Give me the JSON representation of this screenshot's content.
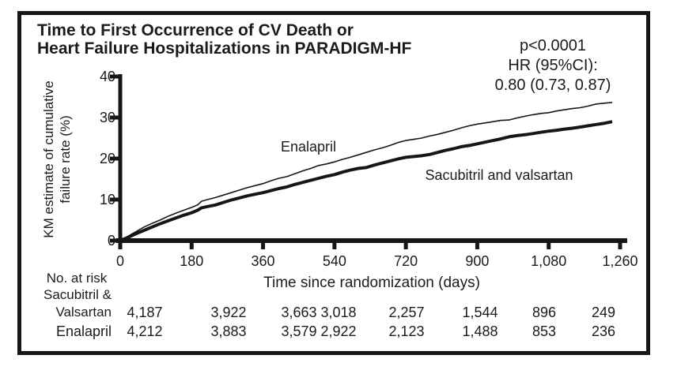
{
  "figure": {
    "title_line1": "Time to First Occurrence of CV Death or",
    "title_line2": "Heart Failure Hospitalizations in PARADIGM-HF",
    "stats": {
      "p_value": "p<0.0001",
      "hr_label": "HR (95%CI):",
      "hr_value": "0.80 (0.73, 0.87)"
    }
  },
  "chart_data": {
    "type": "line",
    "title": "Time to First Occurrence of CV Death or Heart Failure Hospitalizations in PARADIGM-HF",
    "xlabel": "Time since randomization (days)",
    "ylabel": "KM estimate of cumulative failure rate (%)",
    "ylabel_line1": "KM estimate of cumulative",
    "ylabel_line2": "failure rate (%)",
    "xlim": [
      0,
      1260
    ],
    "ylim": [
      0,
      40
    ],
    "x_ticks": [
      0,
      180,
      360,
      540,
      720,
      900,
      1080,
      1260
    ],
    "x_tick_labels": [
      "0",
      "180",
      "360",
      "540",
      "720",
      "900",
      "1,080",
      "1,260"
    ],
    "y_ticks": [
      0,
      10,
      20,
      30,
      40
    ],
    "y_tick_labels": [
      "0",
      "10",
      "20",
      "30",
      "40"
    ],
    "grid": false,
    "legend_position": "inline-annotations",
    "annotations": [
      "p<0.0001",
      "HR (95%CI):",
      "0.80 (0.73, 0.87)"
    ],
    "series": [
      {
        "name": "Enalapril",
        "style": "thin",
        "color": "#161616",
        "points": [
          [
            0,
            0
          ],
          [
            20,
            1.1
          ],
          [
            40,
            2.2
          ],
          [
            60,
            3.3
          ],
          [
            80,
            4.2
          ],
          [
            100,
            5.0
          ],
          [
            120,
            5.9
          ],
          [
            140,
            6.7
          ],
          [
            160,
            7.4
          ],
          [
            180,
            8.1
          ],
          [
            195,
            8.7
          ],
          [
            205,
            9.6
          ],
          [
            220,
            10.0
          ],
          [
            240,
            10.5
          ],
          [
            260,
            11.1
          ],
          [
            280,
            11.7
          ],
          [
            300,
            12.3
          ],
          [
            320,
            12.9
          ],
          [
            340,
            13.4
          ],
          [
            360,
            13.9
          ],
          [
            380,
            14.6
          ],
          [
            400,
            15.2
          ],
          [
            420,
            15.6
          ],
          [
            440,
            16.3
          ],
          [
            460,
            17.0
          ],
          [
            480,
            17.6
          ],
          [
            500,
            18.3
          ],
          [
            520,
            18.7
          ],
          [
            540,
            19.2
          ],
          [
            560,
            19.8
          ],
          [
            580,
            20.3
          ],
          [
            600,
            20.9
          ],
          [
            620,
            21.5
          ],
          [
            640,
            22.1
          ],
          [
            660,
            22.6
          ],
          [
            680,
            23.2
          ],
          [
            700,
            23.9
          ],
          [
            720,
            24.4
          ],
          [
            740,
            24.7
          ],
          [
            760,
            25.0
          ],
          [
            780,
            25.5
          ],
          [
            800,
            25.9
          ],
          [
            820,
            26.4
          ],
          [
            840,
            26.9
          ],
          [
            860,
            27.5
          ],
          [
            880,
            28.0
          ],
          [
            900,
            28.4
          ],
          [
            920,
            28.7
          ],
          [
            940,
            29.0
          ],
          [
            960,
            29.3
          ],
          [
            980,
            29.4
          ],
          [
            1000,
            29.9
          ],
          [
            1020,
            30.3
          ],
          [
            1040,
            30.7
          ],
          [
            1060,
            31.0
          ],
          [
            1080,
            31.2
          ],
          [
            1100,
            31.6
          ],
          [
            1120,
            31.9
          ],
          [
            1140,
            32.2
          ],
          [
            1160,
            32.4
          ],
          [
            1180,
            32.8
          ],
          [
            1200,
            33.3
          ],
          [
            1220,
            33.5
          ],
          [
            1240,
            33.7
          ]
        ]
      },
      {
        "name": "Sacubitril and valsartan",
        "style": "thick",
        "color": "#161616",
        "points": [
          [
            0,
            0
          ],
          [
            20,
            0.8
          ],
          [
            40,
            1.7
          ],
          [
            60,
            2.5
          ],
          [
            80,
            3.3
          ],
          [
            100,
            4.1
          ],
          [
            120,
            4.8
          ],
          [
            140,
            5.5
          ],
          [
            160,
            6.2
          ],
          [
            180,
            6.8
          ],
          [
            195,
            7.4
          ],
          [
            205,
            8.0
          ],
          [
            220,
            8.3
          ],
          [
            240,
            8.7
          ],
          [
            260,
            9.3
          ],
          [
            280,
            9.9
          ],
          [
            300,
            10.4
          ],
          [
            320,
            10.9
          ],
          [
            340,
            11.3
          ],
          [
            360,
            11.7
          ],
          [
            380,
            12.2
          ],
          [
            400,
            12.7
          ],
          [
            420,
            13.1
          ],
          [
            440,
            13.7
          ],
          [
            460,
            14.2
          ],
          [
            480,
            14.7
          ],
          [
            500,
            15.2
          ],
          [
            520,
            15.7
          ],
          [
            540,
            16.1
          ],
          [
            560,
            16.7
          ],
          [
            580,
            17.2
          ],
          [
            600,
            17.6
          ],
          [
            620,
            17.8
          ],
          [
            640,
            18.4
          ],
          [
            660,
            18.9
          ],
          [
            680,
            19.4
          ],
          [
            700,
            19.9
          ],
          [
            720,
            20.3
          ],
          [
            740,
            20.5
          ],
          [
            760,
            20.7
          ],
          [
            780,
            21.0
          ],
          [
            800,
            21.5
          ],
          [
            820,
            22.0
          ],
          [
            840,
            22.4
          ],
          [
            860,
            22.9
          ],
          [
            880,
            23.2
          ],
          [
            900,
            23.6
          ],
          [
            920,
            24.0
          ],
          [
            940,
            24.4
          ],
          [
            960,
            24.8
          ],
          [
            980,
            25.3
          ],
          [
            1000,
            25.6
          ],
          [
            1020,
            25.8
          ],
          [
            1040,
            26.1
          ],
          [
            1060,
            26.4
          ],
          [
            1080,
            26.7
          ],
          [
            1100,
            26.9
          ],
          [
            1120,
            27.2
          ],
          [
            1140,
            27.4
          ],
          [
            1160,
            27.7
          ],
          [
            1180,
            28.0
          ],
          [
            1200,
            28.3
          ],
          [
            1220,
            28.6
          ],
          [
            1240,
            29.0
          ]
        ]
      }
    ]
  },
  "risk_table": {
    "header": "No. at risk",
    "x_days": [
      0,
      180,
      360,
      540,
      720,
      900,
      1080,
      1260
    ],
    "rows": [
      {
        "label_line1": "Sacubitril &",
        "label_line2": "Valsartan",
        "values": [
          "4,187",
          "3,922",
          "3,663",
          "3,018",
          "2,257",
          "1,544",
          "896",
          "249"
        ]
      },
      {
        "label": "Enalapril",
        "values": [
          "4,212",
          "3,883",
          "3,579",
          "2,922",
          "2,123",
          "1,488",
          "853",
          "236"
        ]
      }
    ]
  },
  "colors": {
    "ink": "#161616",
    "background": "#ffffff"
  }
}
